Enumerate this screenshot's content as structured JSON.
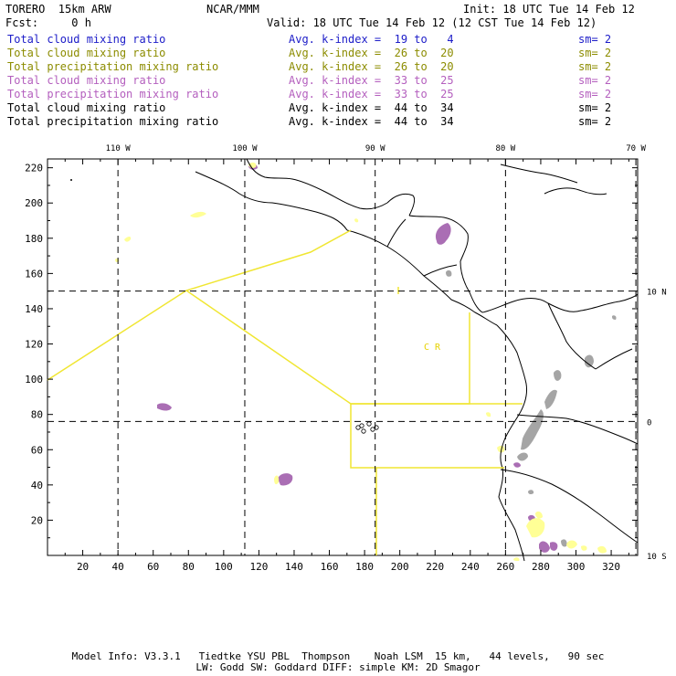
{
  "header": {
    "model": "TORERO  15km ARW",
    "org": "NCAR/MMM",
    "init": "Init: 18 UTC Tue 14 Feb 12",
    "fcst": "Fcst:     0 h",
    "valid": "Valid: 18 UTC Tue 14 Feb 12 (12 CST Tue 14 Feb 12)"
  },
  "legend": [
    {
      "field": "Total cloud mixing ratio",
      "kindex": "Avg. k-index =  19 to   4",
      "sm": "sm= 2",
      "color": "#1c1cc8"
    },
    {
      "field": "Total cloud mixing ratio",
      "kindex": "Avg. k-index =  26 to  20",
      "sm": "sm= 2",
      "color": "#8c8c00"
    },
    {
      "field": "Total precipitation mixing ratio",
      "kindex": "Avg. k-index =  26 to  20",
      "sm": "sm= 2",
      "color": "#8c8c00"
    },
    {
      "field": "Total cloud mixing ratio",
      "kindex": "Avg. k-index =  33 to  25",
      "sm": "sm= 2",
      "color": "#b45fbe"
    },
    {
      "field": "Total precipitation mixing ratio",
      "kindex": "Avg. k-index =  33 to  25",
      "sm": "sm= 2",
      "color": "#b45fbe"
    },
    {
      "field": "Total cloud mixing ratio",
      "kindex": "Avg. k-index =  44 to  34",
      "sm": "sm= 2",
      "color": "#000000"
    },
    {
      "field": "Total precipitation mixing ratio",
      "kindex": "Avg. k-index =  44 to  34",
      "sm": "sm= 2",
      "color": "#000000"
    }
  ],
  "map": {
    "x_grid": {
      "min": 0,
      "max": 335,
      "ticks": [
        "20",
        "40",
        "60",
        "80",
        "100",
        "120",
        "140",
        "160",
        "180",
        "200",
        "220",
        "240",
        "260",
        "280",
        "300",
        "320"
      ]
    },
    "y_grid": {
      "min": 0,
      "max": 225,
      "ticks": [
        "20",
        "40",
        "60",
        "80",
        "100",
        "120",
        "140",
        "160",
        "180",
        "200",
        "220"
      ]
    },
    "longitudes": [
      {
        "label": "110 W",
        "x": 40
      },
      {
        "label": "100 W",
        "x": 112
      },
      {
        "label": "90 W",
        "x": 186
      },
      {
        "label": "80 W",
        "x": 260
      },
      {
        "label": "70 W",
        "x": 334
      }
    ],
    "latitudes": [
      {
        "label": "10 N",
        "y": 150
      },
      {
        "label": "0",
        "y": 76
      },
      {
        "label": "10 S",
        "y": 0
      }
    ],
    "region_label": "C  R",
    "region_label_color": "#e6d200",
    "colors": {
      "cloud_light": "#ffff96",
      "precip_purple": "#aa6eb4",
      "precip_gray": "#a5a5a5",
      "boundary_yellow": "#f0e632"
    }
  },
  "footer": {
    "line1": "Model Info: V3.3.1   Tiedtke YSU PBL  Thompson    Noah LSM  15 km,   44 levels,   90 sec",
    "line2": "LW: Godd SW: Goddard DIFF: simple KM: 2D Smagor"
  }
}
